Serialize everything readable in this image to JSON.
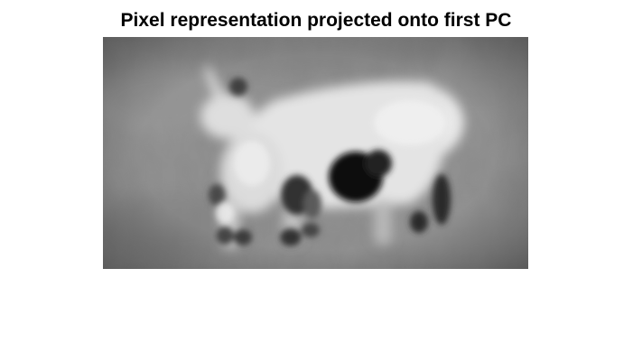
{
  "figure": {
    "title": "Pixel representation projected onto first PC"
  },
  "image": {
    "content": "grayscale-pc-projection-cow",
    "colormap": "gray",
    "background_gray": "#8a8a8a",
    "subject_gray": "#e6e6e6",
    "dark_gray": "#101010"
  }
}
